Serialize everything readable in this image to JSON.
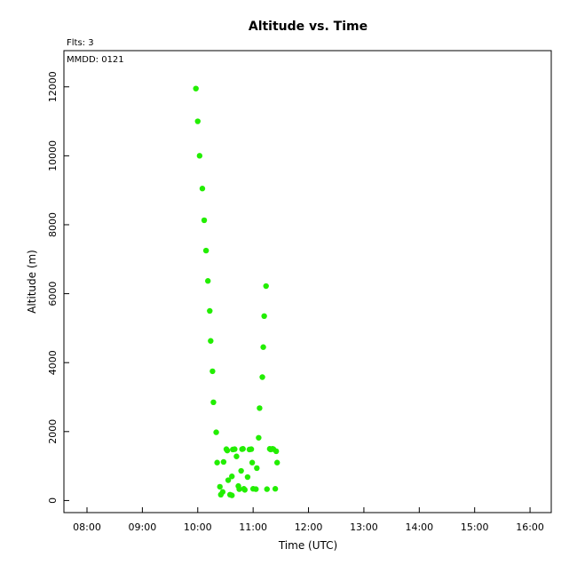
{
  "chart_data": {
    "type": "scatter",
    "title": "Altitude  vs. Time",
    "xlabel": "Time (UTC)",
    "ylabel": "Altitude (m)",
    "annotations": {
      "flights": "Flts: 3",
      "mmdd": "MMDD: 0121"
    },
    "x_ticks": [
      "08:00",
      "09:00",
      "10:00",
      "11:00",
      "12:00",
      "13:00",
      "14:00",
      "15:00",
      "16:00"
    ],
    "y_ticks": [
      "0",
      "2000",
      "4000",
      "6000",
      "8000",
      "10000",
      "12000"
    ],
    "xlim": [
      "07:35",
      "16:23"
    ],
    "ylim": [
      -350,
      13050
    ],
    "grid": false,
    "marker_color": "#22ee00",
    "series": [
      {
        "x": [
          "09:58",
          "10:00",
          "10:02",
          "10:05",
          "10:07",
          "10:09",
          "10:11",
          "10:13",
          "10:14",
          "10:16",
          "10:17",
          "10:20",
          "10:21",
          "10:24",
          "10:25",
          "10:27",
          "10:28",
          "10:31",
          "10:32",
          "10:33",
          "10:35",
          "10:37",
          "10:37",
          "10:38",
          "10:40",
          "10:42",
          "10:44",
          "10:45",
          "10:47",
          "10:48",
          "10:49",
          "10:50",
          "10:51",
          "10:54",
          "10:56",
          "10:58",
          "10:59",
          "11:00",
          "11:03",
          "11:04",
          "11:06",
          "11:07",
          "11:10",
          "11:11",
          "11:12",
          "11:14",
          "11:15",
          "11:18",
          "11:19",
          "11:21",
          "11:22",
          "11:24",
          "11:25",
          "11:26"
        ],
        "y": [
          11950,
          11000,
          10000,
          9050,
          8130,
          7250,
          6370,
          5500,
          4630,
          3750,
          2850,
          1980,
          1100,
          400,
          170,
          250,
          1120,
          1490,
          1450,
          590,
          170,
          150,
          700,
          1480,
          1490,
          1280,
          420,
          330,
          860,
          1490,
          1500,
          340,
          310,
          680,
          1480,
          1490,
          1100,
          340,
          330,
          940,
          1820,
          2680,
          3580,
          4450,
          5350,
          6220,
          330,
          1500,
          1480,
          1500,
          1490,
          340,
          1430,
          1100
        ]
      }
    ]
  }
}
